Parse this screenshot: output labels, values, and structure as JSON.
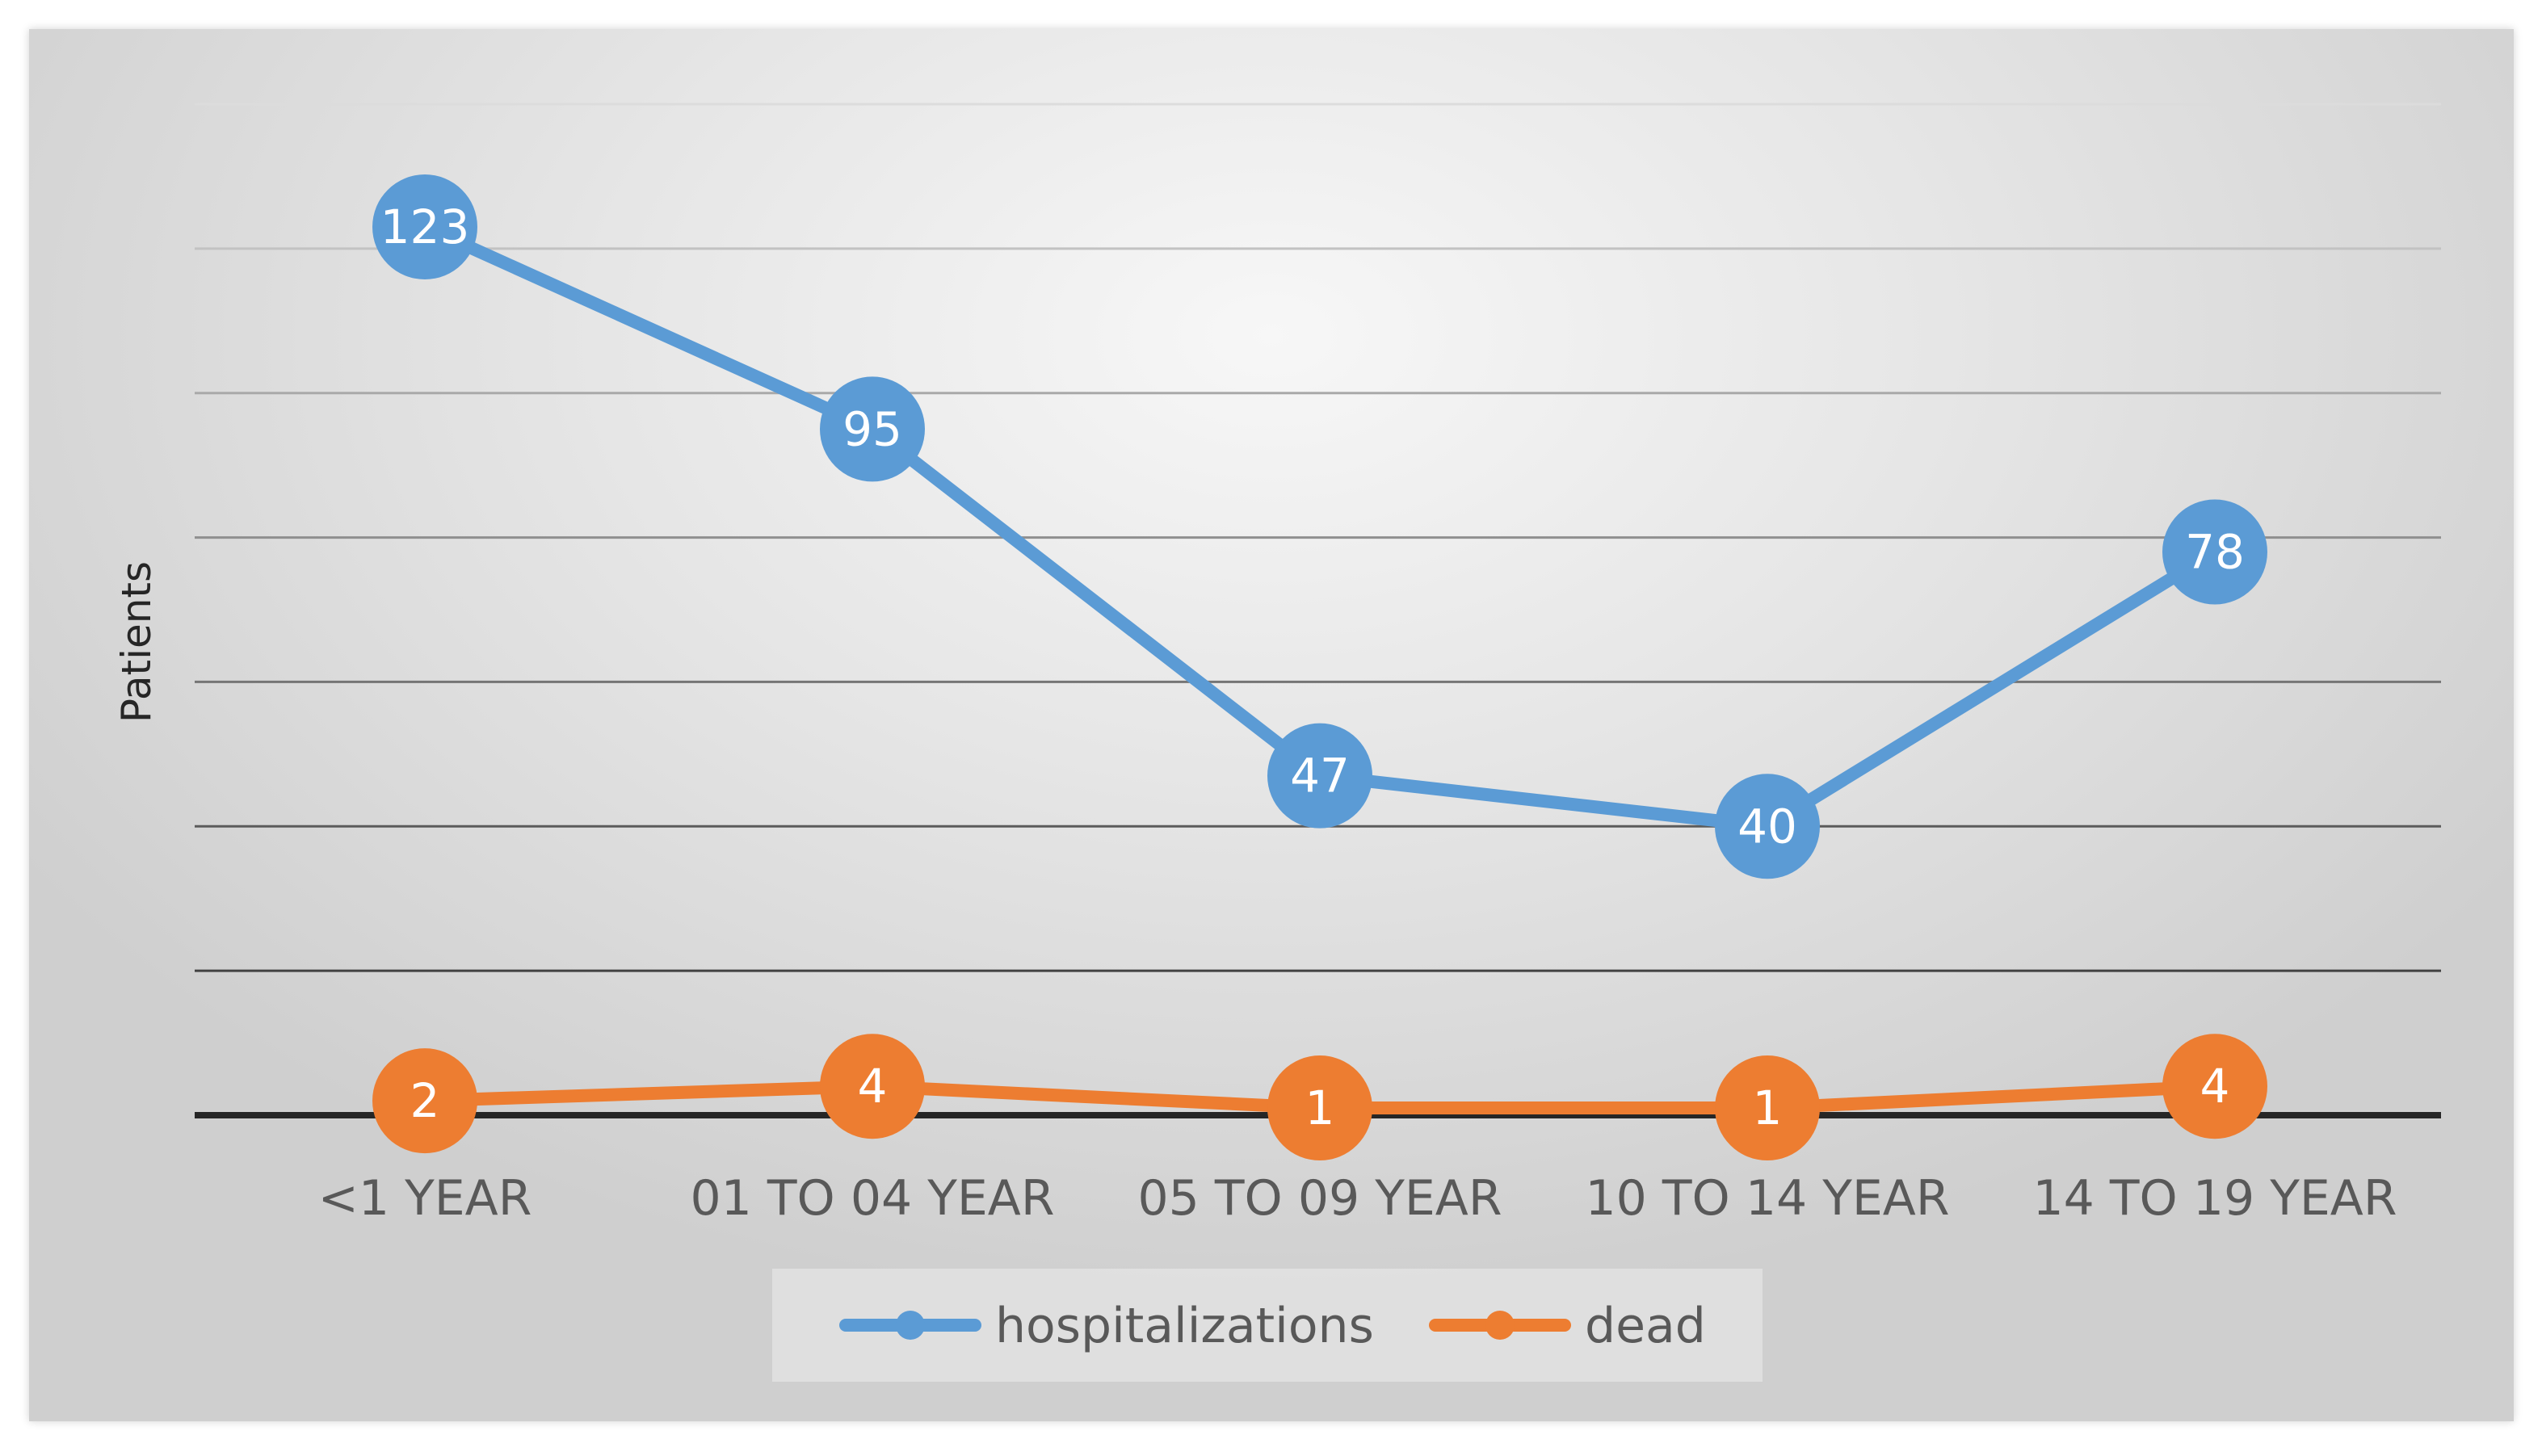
{
  "chart_data": {
    "type": "line",
    "title": "",
    "xlabel": "",
    "ylabel": "Patients",
    "categories": [
      "<1 YEAR",
      "01 TO 04 YEAR",
      "05 TO 09 YEAR",
      "10 TO 14 YEAR",
      "14 TO 19 YEAR"
    ],
    "series": [
      {
        "name": "hospitalizations",
        "values": [
          123,
          95,
          47,
          40,
          78
        ],
        "color": "#5b9bd5"
      },
      {
        "name": "dead",
        "values": [
          2,
          4,
          1,
          1,
          4
        ],
        "color": "#ed7d31"
      }
    ],
    "ylim": [
      0,
      140
    ],
    "y_gridline_step": 20,
    "y_tick_labels_shown": false,
    "grid": true,
    "data_labels": true,
    "markers": "circle",
    "legend_position": "bottom"
  }
}
